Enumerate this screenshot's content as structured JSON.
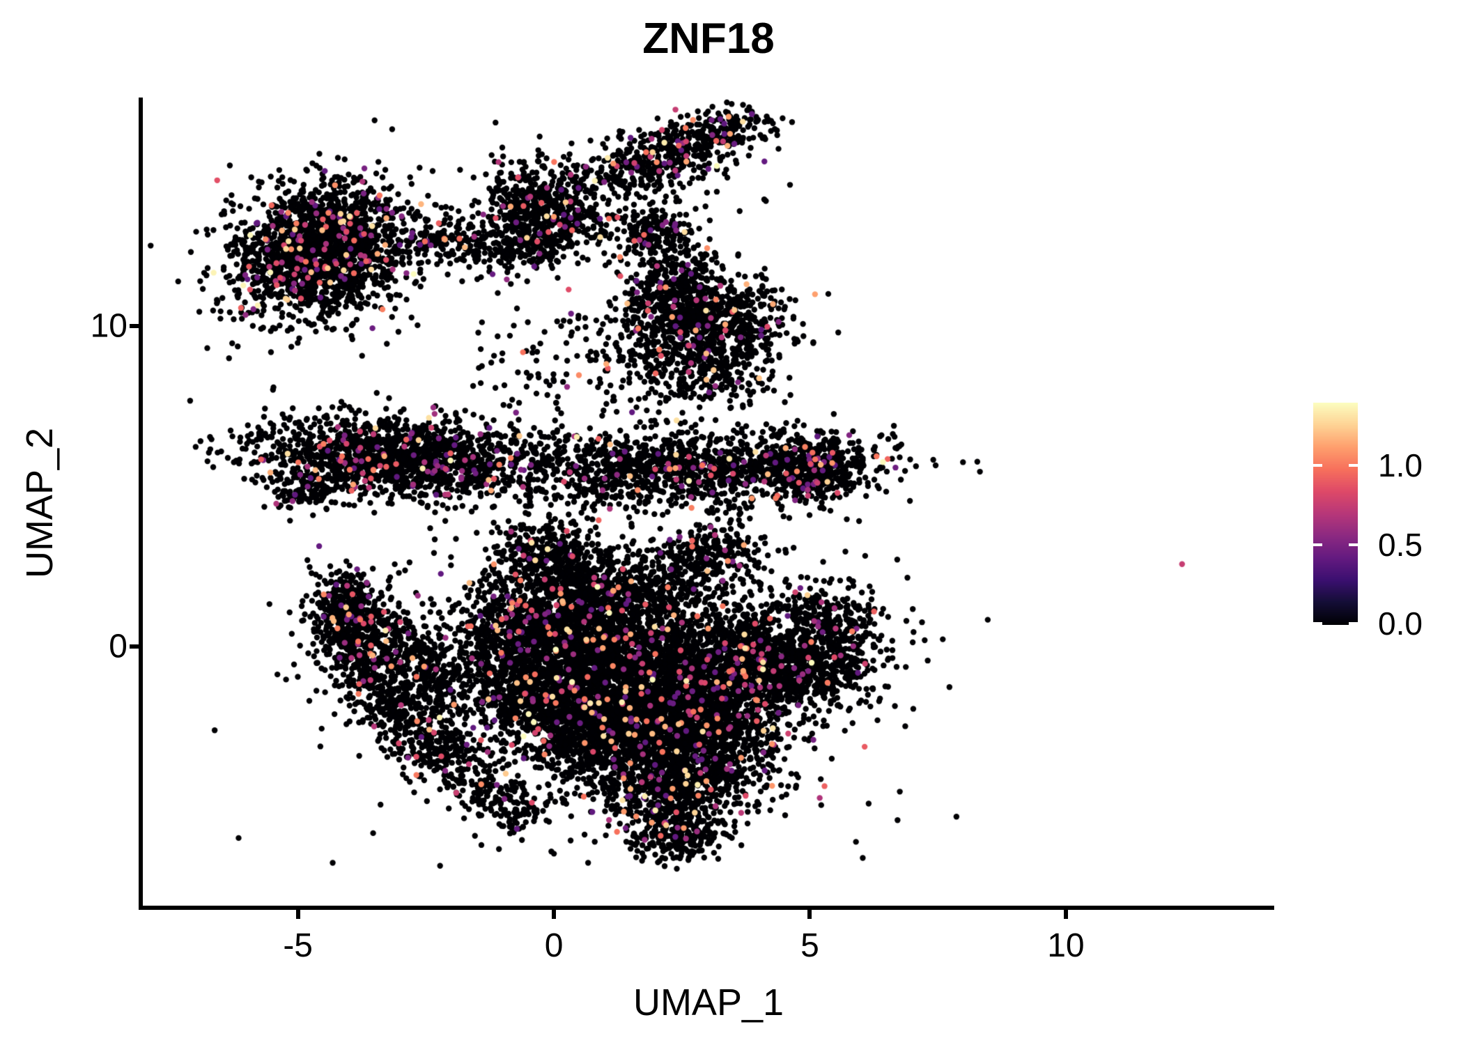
{
  "figure": {
    "title": "ZNF18",
    "x_axis_label": "UMAP_1",
    "y_axis_label": "UMAP_2",
    "background_color": "#ffffff",
    "axis_color": "#000000",
    "text_color": "#000000"
  },
  "chart_data": {
    "type": "scatter",
    "title": "ZNF18",
    "xlabel": "UMAP_1",
    "ylabel": "UMAP_2",
    "xlim": [
      -8.03,
      14.07
    ],
    "ylim": [
      -8.09,
      17.13
    ],
    "x_ticks": [
      -5,
      0,
      5,
      10
    ],
    "y_ticks": [
      0,
      10
    ],
    "grid": false,
    "legend_position": "right",
    "point_radius_px": 4.2,
    "point_color_zero": "#000004",
    "seed": 42,
    "colorbar": {
      "ticks": [
        1.0,
        0.5,
        0.0
      ],
      "tick_labels": [
        "1.0",
        "0.5",
        "0.0"
      ],
      "vmin": 0.0,
      "vmax": 1.39,
      "colormap": "magma",
      "colormap_stops": [
        "#000004",
        "#140e36",
        "#3b0f70",
        "#641a80",
        "#8c2981",
        "#b73779",
        "#de4968",
        "#f7705c",
        "#fe9f6d",
        "#fed395",
        "#fcfdbf"
      ]
    },
    "expressed_value_min": 0.4,
    "expressed_value_max": 1.39,
    "clusters": [
      {
        "name": "topleft-core",
        "kind": "gauss",
        "cx": -4.6,
        "cy": 12.35,
        "sx": 0.78,
        "sy": 1.05,
        "rot": -15,
        "n": 1700,
        "ef": 0.08
      },
      {
        "name": "topleft-halo",
        "kind": "gauss",
        "cx": -4.55,
        "cy": 12.3,
        "sx": 1.05,
        "sy": 1.35,
        "rot": -15,
        "n": 260,
        "ef": 0.05
      },
      {
        "name": "bridge-left",
        "kind": "path",
        "path": [
          [
            -3.0,
            12.5
          ],
          [
            -2.2,
            12.75
          ],
          [
            -1.55,
            12.8
          ]
        ],
        "sigma": 0.3,
        "n": 110,
        "ef": 0.04
      },
      {
        "name": "midtop-core",
        "kind": "gauss",
        "cx": -0.45,
        "cy": 13.9,
        "sx": 0.58,
        "sy": 0.6,
        "rot": 0,
        "n": 390,
        "ef": 0.05
      },
      {
        "name": "midtop-lower",
        "kind": "gauss",
        "cx": -0.8,
        "cy": 12.55,
        "sx": 0.65,
        "sy": 0.5,
        "rot": 0,
        "n": 260,
        "ef": 0.05
      },
      {
        "name": "midtop-right",
        "kind": "gauss",
        "cx": 0.35,
        "cy": 13.15,
        "sx": 0.5,
        "sy": 0.45,
        "rot": 0,
        "n": 150,
        "ef": 0.05
      },
      {
        "name": "bridge-top",
        "kind": "path",
        "path": [
          [
            0.0,
            14.25
          ],
          [
            1.3,
            14.6
          ]
        ],
        "sigma": 0.35,
        "n": 80,
        "ef": 0.04
      },
      {
        "name": "top-band",
        "kind": "path",
        "path": [
          [
            1.45,
            14.75
          ],
          [
            2.5,
            15.55
          ],
          [
            3.8,
            16.45
          ]
        ],
        "sigma": 0.4,
        "n": 450,
        "ef": 0.07
      },
      {
        "name": "top-halo",
        "kind": "gauss",
        "cx": 2.4,
        "cy": 15.3,
        "sx": 1.0,
        "sy": 0.8,
        "rot": 20,
        "n": 120,
        "ef": 0.04
      },
      {
        "name": "connector-clump",
        "kind": "gauss",
        "cx": 2.0,
        "cy": 13.05,
        "sx": 0.42,
        "sy": 0.38,
        "rot": 0,
        "n": 140,
        "ef": 0.06
      },
      {
        "name": "connector",
        "kind": "path",
        "path": [
          [
            2.1,
            12.9
          ],
          [
            2.35,
            11.8
          ],
          [
            2.6,
            10.9
          ]
        ],
        "sigma": 0.45,
        "n": 230,
        "ef": 0.04
      },
      {
        "name": "mid-blob",
        "kind": "gauss",
        "cx": 2.95,
        "cy": 9.9,
        "sx": 0.78,
        "sy": 0.85,
        "rot": 0,
        "n": 880,
        "ef": 0.05
      },
      {
        "name": "mid-blob-fringe",
        "kind": "gauss",
        "cx": 2.3,
        "cy": 10.7,
        "sx": 0.5,
        "sy": 0.5,
        "rot": 0,
        "n": 150,
        "ef": 0.04
      },
      {
        "name": "band-left",
        "kind": "gauss",
        "cx": -3.1,
        "cy": 5.95,
        "sx": 1.4,
        "sy": 0.6,
        "rot": -4,
        "n": 1500,
        "ef": 0.07
      },
      {
        "name": "band-left-tail",
        "kind": "gauss",
        "cx": -4.85,
        "cy": 4.9,
        "sx": 0.38,
        "sy": 0.35,
        "rot": 0,
        "n": 130,
        "ef": 0.05
      },
      {
        "name": "band-right",
        "kind": "gauss",
        "cx": 2.3,
        "cy": 5.55,
        "sx": 1.9,
        "sy": 0.6,
        "rot": 2,
        "n": 1250,
        "ef": 0.05
      },
      {
        "name": "band-right-tip",
        "kind": "gauss",
        "cx": 5.05,
        "cy": 5.6,
        "sx": 0.58,
        "sy": 0.55,
        "rot": 0,
        "n": 430,
        "ef": 0.09
      },
      {
        "name": "band-under-sparse",
        "kind": "gauss",
        "cx": 0.8,
        "cy": 8.9,
        "sx": 1.3,
        "sy": 1.1,
        "rot": 0,
        "n": 170,
        "ef": 0.03
      },
      {
        "name": "blob-under-band",
        "kind": "gauss",
        "cx": 3.0,
        "cy": 8.3,
        "sx": 0.8,
        "sy": 0.6,
        "rot": 0,
        "n": 130,
        "ef": 0.04
      },
      {
        "name": "crescent-outer",
        "kind": "path",
        "path": [
          [
            -4.05,
            1.7
          ],
          [
            -3.95,
            0.55
          ],
          [
            -3.7,
            -0.65
          ],
          [
            -3.2,
            -1.85
          ],
          [
            -2.5,
            -2.95
          ],
          [
            -1.7,
            -3.95
          ]
        ],
        "sigma": 0.42,
        "n": 950,
        "ef": 0.05
      },
      {
        "name": "crescent-head",
        "kind": "gauss",
        "cx": -3.9,
        "cy": 1.0,
        "sx": 0.35,
        "sy": 0.75,
        "rot": 10,
        "n": 260,
        "ef": 0.05
      },
      {
        "name": "crescent-inner",
        "kind": "path",
        "path": [
          [
            -3.0,
            0.6
          ],
          [
            -2.6,
            -0.5
          ],
          [
            -2.1,
            -1.6
          ]
        ],
        "sigma": 0.3,
        "n": 260,
        "ef": 0.04
      },
      {
        "name": "main-1",
        "kind": "gauss",
        "cx": 0.1,
        "cy": 0.6,
        "sx": 1.05,
        "sy": 1.0,
        "rot": 0,
        "n": 1500,
        "ef": 0.05
      },
      {
        "name": "main-2",
        "kind": "gauss",
        "cx": 1.9,
        "cy": -0.9,
        "sx": 1.15,
        "sy": 1.05,
        "rot": 0,
        "n": 1600,
        "ef": 0.05
      },
      {
        "name": "main-3",
        "kind": "gauss",
        "cx": 0.9,
        "cy": -2.6,
        "sx": 0.95,
        "sy": 0.85,
        "rot": 0,
        "n": 1100,
        "ef": 0.05
      },
      {
        "name": "main-4",
        "kind": "gauss",
        "cx": 2.9,
        "cy": -2.7,
        "sx": 0.85,
        "sy": 0.9,
        "rot": 0,
        "n": 1000,
        "ef": 0.05
      },
      {
        "name": "main-5",
        "kind": "gauss",
        "cx": 3.7,
        "cy": -0.4,
        "sx": 0.7,
        "sy": 0.9,
        "rot": 0,
        "n": 700,
        "ef": 0.05
      },
      {
        "name": "main-6",
        "kind": "gauss",
        "cx": 1.2,
        "cy": 1.8,
        "sx": 1.0,
        "sy": 0.6,
        "rot": 8,
        "n": 620,
        "ef": 0.05
      },
      {
        "name": "main-7",
        "kind": "gauss",
        "cx": -0.6,
        "cy": -1.2,
        "sx": 0.7,
        "sy": 0.9,
        "rot": 0,
        "n": 550,
        "ef": 0.05
      },
      {
        "name": "main-8",
        "kind": "gauss",
        "cx": 2.2,
        "cy": -4.4,
        "sx": 0.7,
        "sy": 0.6,
        "rot": 0,
        "n": 500,
        "ef": 0.05
      },
      {
        "name": "bottom-tip",
        "kind": "gauss",
        "cx": 2.4,
        "cy": -5.7,
        "sx": 0.5,
        "sy": 0.45,
        "rot": 0,
        "n": 280,
        "ef": 0.05
      },
      {
        "name": "right-lobe",
        "kind": "gauss",
        "cx": 5.3,
        "cy": 0.1,
        "sx": 0.55,
        "sy": 0.9,
        "rot": 0,
        "n": 560,
        "ef": 0.05
      },
      {
        "name": "lobe-bridge",
        "kind": "gauss",
        "cx": 4.6,
        "cy": -0.9,
        "sx": 0.5,
        "sy": 0.5,
        "rot": 0,
        "n": 220,
        "ef": 0.05
      },
      {
        "name": "top-bump-1",
        "kind": "gauss",
        "cx": -0.1,
        "cy": 3.1,
        "sx": 0.55,
        "sy": 0.45,
        "rot": 0,
        "n": 260,
        "ef": 0.05
      },
      {
        "name": "top-bump-2",
        "kind": "gauss",
        "cx": 3.1,
        "cy": 2.85,
        "sx": 0.6,
        "sy": 0.5,
        "rot": 0,
        "n": 230,
        "ef": 0.05
      },
      {
        "name": "bottom-left-tail",
        "kind": "path",
        "path": [
          [
            -1.5,
            -4.3
          ],
          [
            -0.6,
            -5.3
          ]
        ],
        "sigma": 0.35,
        "n": 130,
        "ef": 0.04
      },
      {
        "name": "main-halo",
        "kind": "gauss",
        "cx": 1.2,
        "cy": -1.0,
        "sx": 2.6,
        "sy": 2.4,
        "rot": 0,
        "n": 700,
        "ef": 0.03
      }
    ],
    "outliers": [
      {
        "x": 12.27,
        "y": 2.57,
        "value": 0.75
      }
    ]
  }
}
